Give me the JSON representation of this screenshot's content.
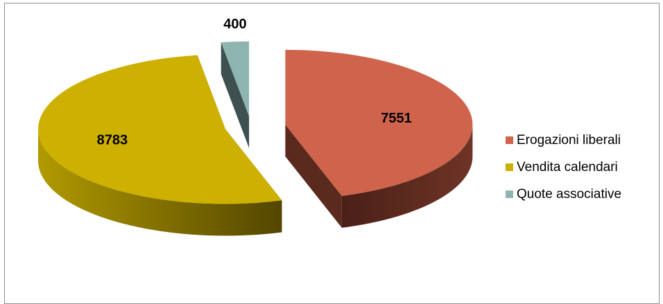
{
  "chart_data": {
    "type": "pie",
    "categories": [
      "Erogazioni liberali",
      "Vendita calendari",
      "Quote associative"
    ],
    "values": [
      7551,
      8783,
      400
    ],
    "colors": [
      "#d0634c",
      "#cdb000",
      "#8fb5b3"
    ],
    "side_colors": [
      "#5a2a1e",
      "#6b5c00",
      "#3f5050"
    ],
    "data_labels": [
      "7551",
      "8783",
      "400"
    ],
    "legend_position": "right",
    "exploded": true,
    "three_d": true
  }
}
